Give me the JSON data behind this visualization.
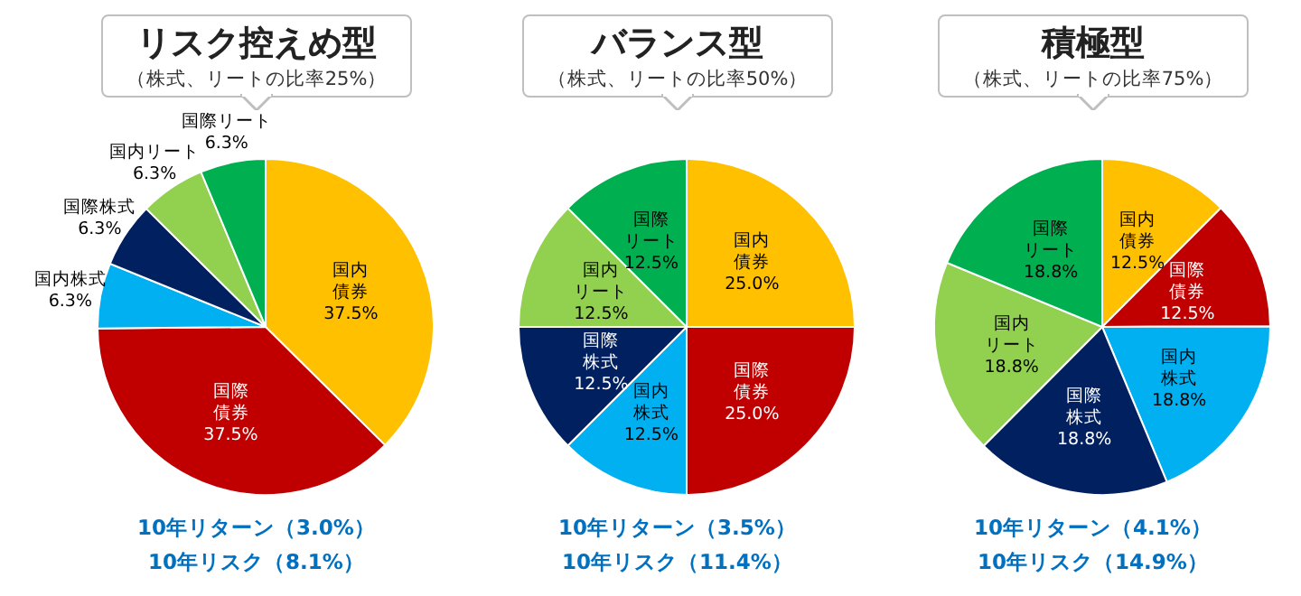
{
  "chart_data": [
    {
      "type": "pie",
      "title": "リスク控えめ型",
      "subtitle": "（株式、リートの比率25%）",
      "categories": [
        "国内債券",
        "国際債券",
        "国内株式",
        "国際株式",
        "国内リート",
        "国際リート"
      ],
      "values": [
        37.5,
        37.5,
        6.3,
        6.3,
        6.3,
        6.3
      ],
      "value_labels": [
        "37.5%",
        "37.5%",
        "6.3%",
        "6.3%",
        "6.3%",
        "6.3%"
      ],
      "colors": [
        "#ffc000",
        "#c00000",
        "#00b0f0",
        "#002060",
        "#92d050",
        "#00b050"
      ],
      "annotations": [
        "10年リターン（3.0%）",
        "10年リスク（8.1%）"
      ]
    },
    {
      "type": "pie",
      "title": "バランス型",
      "subtitle": "（株式、リートの比率50%）",
      "categories": [
        "国内債券",
        "国際債券",
        "国内株式",
        "国際株式",
        "国内リート",
        "国際リート"
      ],
      "values": [
        25.0,
        25.0,
        12.5,
        12.5,
        12.5,
        12.5
      ],
      "value_labels": [
        "25.0%",
        "25.0%",
        "12.5%",
        "12.5%",
        "12.5%",
        "12.5%"
      ],
      "colors": [
        "#ffc000",
        "#c00000",
        "#00b0f0",
        "#002060",
        "#92d050",
        "#00b050"
      ],
      "annotations": [
        "10年リターン（3.5%）",
        "10年リスク（11.4%）"
      ]
    },
    {
      "type": "pie",
      "title": "積極型",
      "subtitle": "（株式、リートの比率75%）",
      "categories": [
        "国内債券",
        "国際債券",
        "国内株式",
        "国際株式",
        "国内リート",
        "国際リート"
      ],
      "values": [
        12.5,
        12.5,
        18.8,
        18.8,
        18.8,
        18.8
      ],
      "value_labels": [
        "12.5%",
        "12.5%",
        "18.8%",
        "18.8%",
        "18.8%",
        "18.8%"
      ],
      "colors": [
        "#ffc000",
        "#c00000",
        "#00b0f0",
        "#002060",
        "#92d050",
        "#00b050"
      ],
      "annotations": [
        "10年リターン（4.1%）",
        "10年リスク（14.9%）"
      ]
    }
  ]
}
